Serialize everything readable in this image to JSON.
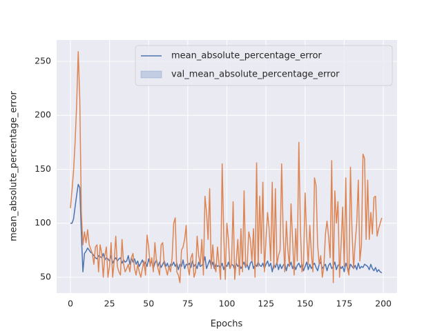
{
  "chart_data": {
    "type": "line",
    "x_label": "Epochs",
    "y_label": "mean_absolute_percentage_error",
    "x": [
      0,
      1,
      2,
      3,
      4,
      5,
      6,
      7,
      8,
      9,
      10,
      11,
      12,
      13,
      14,
      15,
      16,
      17,
      18,
      19,
      20,
      21,
      22,
      23,
      24,
      25,
      26,
      27,
      28,
      29,
      30,
      31,
      32,
      33,
      34,
      35,
      36,
      37,
      38,
      39,
      40,
      41,
      42,
      43,
      44,
      45,
      46,
      47,
      48,
      49,
      50,
      51,
      52,
      53,
      54,
      55,
      56,
      57,
      58,
      59,
      60,
      61,
      62,
      63,
      64,
      65,
      66,
      67,
      68,
      69,
      70,
      71,
      72,
      73,
      74,
      75,
      76,
      77,
      78,
      79,
      80,
      81,
      82,
      83,
      84,
      85,
      86,
      87,
      88,
      89,
      90,
      91,
      92,
      93,
      94,
      95,
      96,
      97,
      98,
      99,
      100,
      101,
      102,
      103,
      104,
      105,
      106,
      107,
      108,
      109,
      110,
      111,
      112,
      113,
      114,
      115,
      116,
      117,
      118,
      119,
      120,
      121,
      122,
      123,
      124,
      125,
      126,
      127,
      128,
      129,
      130,
      131,
      132,
      133,
      134,
      135,
      136,
      137,
      138,
      139,
      140,
      141,
      142,
      143,
      144,
      145,
      146,
      147,
      148,
      149,
      150,
      151,
      152,
      153,
      154,
      155,
      156,
      157,
      158,
      159,
      160,
      161,
      162,
      163,
      164,
      165,
      166,
      167,
      168,
      169,
      170,
      171,
      172,
      173,
      174,
      175,
      176,
      177,
      178,
      179,
      180,
      181,
      182,
      183,
      184,
      185,
      186,
      187,
      188,
      189,
      190,
      191,
      192,
      193,
      194,
      195,
      196,
      197,
      198,
      199
    ],
    "series": [
      {
        "name": "mean_absolute_percentage_error",
        "color": "#4c72b0",
        "legend_marker": "line",
        "values": [
          100,
          100,
          104,
          115,
          126,
          136,
          133,
          90,
          55,
          72,
          74,
          77,
          75,
          73,
          72,
          70,
          68,
          67,
          70,
          69,
          68,
          72,
          66,
          68,
          67,
          65,
          70,
          63,
          66,
          68,
          65,
          67,
          68,
          63,
          66,
          64,
          65,
          70,
          62,
          68,
          64,
          67,
          62,
          65,
          60,
          63,
          66,
          61,
          64,
          60,
          67,
          62,
          65,
          58,
          63,
          66,
          60,
          64,
          59,
          62,
          65,
          60,
          63,
          58,
          62,
          61,
          64,
          60,
          63,
          57,
          62,
          60,
          66,
          58,
          62,
          61,
          63,
          59,
          65,
          60,
          62,
          58,
          64,
          60,
          61,
          63,
          69,
          58,
          62,
          66,
          60,
          64,
          58,
          62,
          60,
          61,
          59,
          63,
          57,
          62,
          60,
          64,
          58,
          62,
          61,
          57,
          63,
          60,
          62,
          58,
          61,
          64,
          59,
          62,
          57,
          63,
          65,
          58,
          62,
          60,
          64,
          61,
          60,
          63,
          58,
          62,
          65,
          60,
          63,
          55,
          62,
          59,
          64,
          57,
          62,
          58,
          61,
          63,
          56,
          62,
          60,
          64,
          58,
          62,
          57,
          61,
          63,
          59,
          62,
          56,
          60,
          64,
          57,
          62,
          58,
          61,
          63,
          59,
          56,
          62,
          64,
          58,
          60,
          62,
          56,
          61,
          63,
          58,
          60,
          64,
          57,
          61,
          62,
          58,
          60,
          55,
          63,
          59,
          56,
          62,
          60,
          58,
          61,
          57,
          63,
          58,
          60,
          59,
          62,
          61,
          60,
          57,
          62,
          58,
          56,
          59,
          55,
          57,
          55,
          54
        ]
      },
      {
        "name": "val_mean_absolute_percentage_error",
        "color": "#dd8452",
        "legend_marker": "patch",
        "values": [
          114,
          130,
          148,
          175,
          210,
          259,
          215,
          110,
          80,
          92,
          82,
          94,
          80,
          76,
          72,
          62,
          78,
          80,
          55,
          80,
          72,
          50,
          70,
          78,
          50,
          60,
          82,
          50,
          65,
          88,
          60,
          55,
          52,
          85,
          62,
          55,
          58,
          62,
          55,
          68,
          72,
          58,
          52,
          62,
          55,
          50,
          58,
          65,
          52,
          89,
          78,
          60,
          68,
          55,
          82,
          65,
          58,
          52,
          80,
          82,
          62,
          58,
          52,
          60,
          55,
          68,
          100,
          105,
          55,
          52,
          45,
          75,
          78,
          85,
          98,
          60,
          52,
          68,
          72,
          50,
          55,
          88,
          70,
          62,
          85,
          52,
          125,
          110,
          85,
          132,
          58,
          80,
          60,
          55,
          78,
          62,
          48,
          155,
          90,
          48,
          100,
          85,
          58,
          62,
          120,
          48,
          65,
          85,
          52,
          95,
          55,
          130,
          60,
          62,
          92,
          85,
          65,
          95,
          50,
          156,
          60,
          125,
          72,
          138,
          55,
          85,
          110,
          95,
          65,
          138,
          58,
          132,
          62,
          70,
          75,
          155,
          90,
          55,
          102,
          75,
          60,
          118,
          85,
          52,
          95,
          65,
          175,
          95,
          55,
          62,
          128,
          88,
          62,
          98,
          72,
          55,
          142,
          135,
          80,
          62,
          70,
          50,
          60,
          90,
          102,
          88,
          68,
          158,
          45,
          130,
          100,
          120,
          50,
          80,
          115,
          60,
          142,
          58,
          52,
          152,
          92,
          58,
          82,
          100,
          140,
          65,
          80,
          164,
          160,
          85,
          140,
          85,
          110,
          90,
          124,
          125,
          88,
          95,
          100,
          105
        ]
      }
    ],
    "xlim": [
      -8.8,
      208.8
    ],
    "ylim": [
      35.3,
      269.8
    ],
    "xticks": [
      0,
      25,
      50,
      75,
      100,
      125,
      150,
      175,
      200
    ],
    "yticks": [
      50,
      100,
      150,
      200,
      250
    ],
    "grid": true,
    "legend": "upper right"
  }
}
